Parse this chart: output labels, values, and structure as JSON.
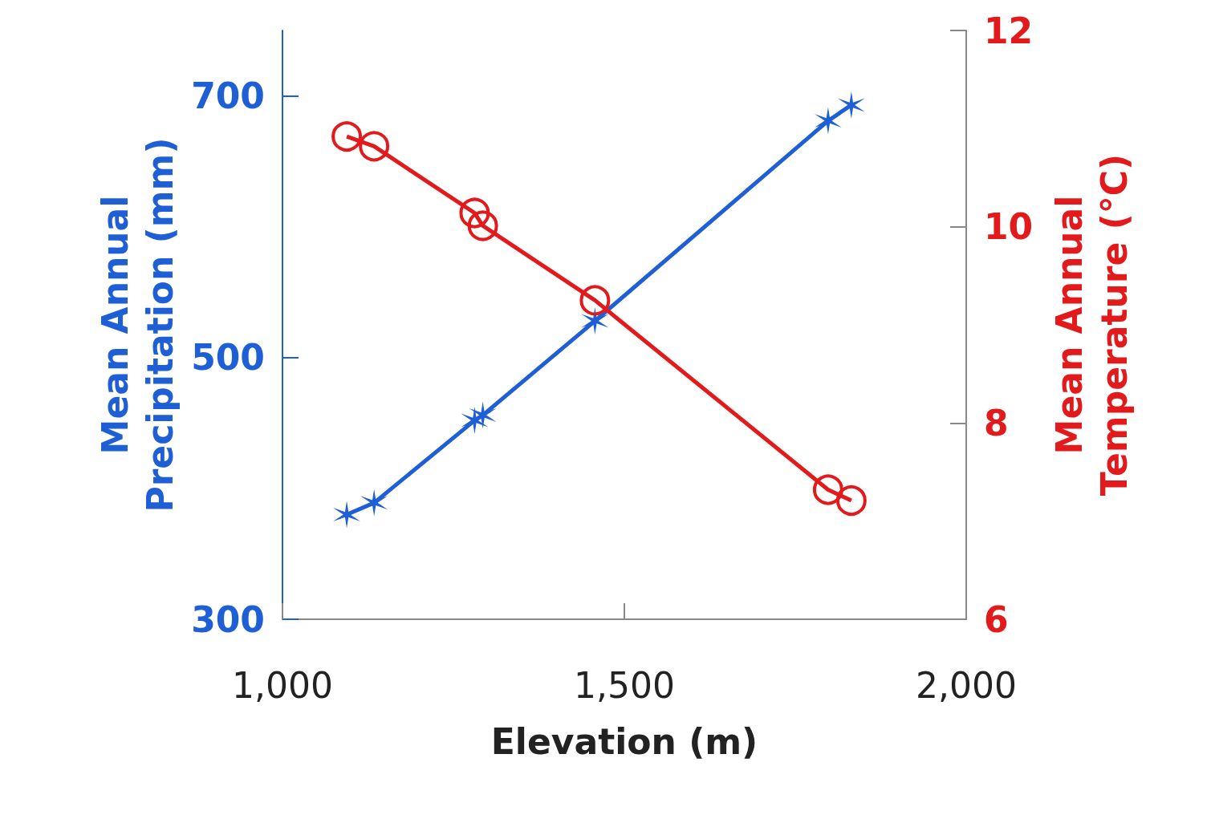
{
  "chart_data": {
    "type": "line",
    "xlabel": "Elevation (m)",
    "ylabel": "Mean Annual Precipitation (mm)",
    "y2label": "Mean Annual Temperature (°C)",
    "xlim": [
      1000,
      2000
    ],
    "xticks": [
      {
        "value": 1000,
        "label": "1,000"
      },
      {
        "value": 1500,
        "label": "1,500"
      },
      {
        "value": 2000,
        "label": "2,000"
      }
    ],
    "ylim": [
      300,
      750
    ],
    "yticks": [
      300,
      500,
      700
    ],
    "y2lim": [
      6,
      12
    ],
    "y2ticks": [
      6,
      8,
      10,
      12
    ],
    "grid": false,
    "line_style": "solid",
    "series": [
      {
        "color": "#1f5fd6",
        "marker": "cross",
        "axis": "y",
        "x": [
          1094,
          1134,
          1281,
          1293,
          1457,
          1798,
          1832
        ],
        "values": [
          380,
          389,
          452,
          456,
          528,
          681,
          693
        ]
      },
      {
        "color": "#e31a1c",
        "marker": "circle",
        "axis": "y2",
        "x": [
          1094,
          1134,
          1281,
          1293,
          1457,
          1798,
          1832
        ],
        "values": [
          10.92,
          10.82,
          10.14,
          10.01,
          9.25,
          7.32,
          7.21
        ]
      }
    ]
  }
}
